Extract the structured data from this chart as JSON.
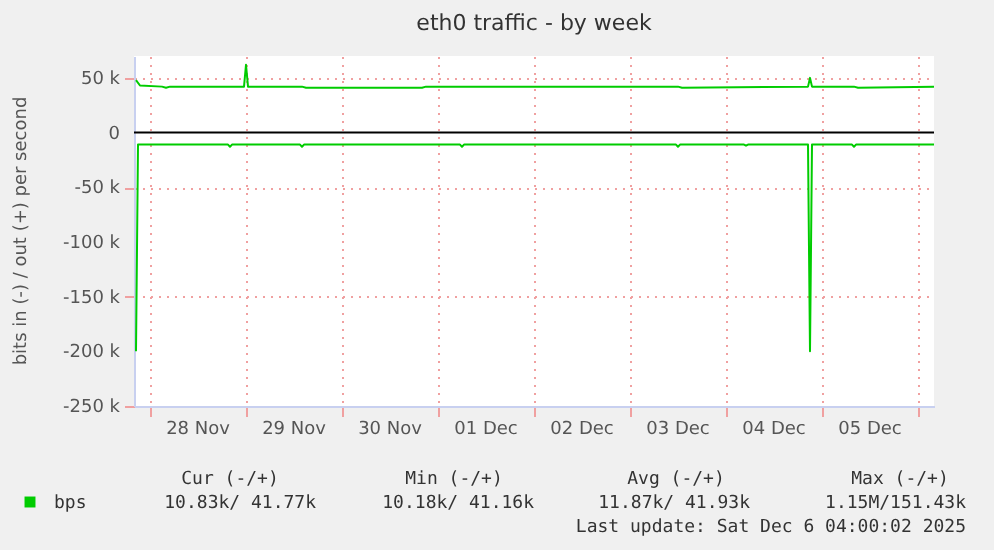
{
  "chart_data": {
    "type": "line",
    "title": "eth0 traffic - by week",
    "ylabel": "bits in (-) / out (+) per second",
    "xlim": [
      "2025-11-27T20:00",
      "2025-12-06T04:00"
    ],
    "xticks": [
      {
        "value": "2025-11-28T00:00",
        "label": null
      },
      {
        "value": "2025-11-28T12:00",
        "label": "28 Nov"
      },
      {
        "value": "2025-11-29T00:00",
        "label": null
      },
      {
        "value": "2025-11-29T12:00",
        "label": "29 Nov"
      },
      {
        "value": "2025-11-30T00:00",
        "label": null
      },
      {
        "value": "2025-11-30T12:00",
        "label": "30 Nov"
      },
      {
        "value": "2025-12-01T00:00",
        "label": null
      },
      {
        "value": "2025-12-01T12:00",
        "label": "01 Dec"
      },
      {
        "value": "2025-12-02T00:00",
        "label": null
      },
      {
        "value": "2025-12-02T12:00",
        "label": "02 Dec"
      },
      {
        "value": "2025-12-03T00:00",
        "label": null
      },
      {
        "value": "2025-12-03T12:00",
        "label": "03 Dec"
      },
      {
        "value": "2025-12-04T00:00",
        "label": null
      },
      {
        "value": "2025-12-04T12:00",
        "label": "04 Dec"
      },
      {
        "value": "2025-12-05T00:00",
        "label": null
      },
      {
        "value": "2025-12-05T12:00",
        "label": "05 Dec"
      },
      {
        "value": "2025-12-06T00:00",
        "label": null
      }
    ],
    "ylim": [
      -250000,
      70000
    ],
    "yticks": [
      {
        "value": 50000,
        "label": "50 k"
      },
      0,
      {
        "value": -50000,
        "label": "-50 k"
      },
      {
        "value": -100000,
        "label": "-100 k"
      },
      {
        "value": -150000,
        "label": "-150 k"
      },
      {
        "value": -200000,
        "label": "-200 k"
      },
      {
        "value": -250000,
        "label": "-250 k"
      }
    ],
    "grid": true,
    "legend": "bottom left",
    "line_style": "solid",
    "ref_lines": [
      {
        "axis": "y",
        "value": 0,
        "label": null,
        "color": "#000000"
      }
    ],
    "series": [
      {
        "name": "bps",
        "color": "#00cc00",
        "x": [
          "2025-11-27T20:30",
          "2025-11-27T21:30",
          "2025-11-28T03:00",
          "2025-11-28T04:00",
          "2025-11-28T05:00",
          "2025-11-28T23:30",
          "2025-11-29T00:00",
          "2025-11-29T00:30",
          "2025-11-29T14:00",
          "2025-11-29T15:00",
          "2025-11-30T20:00",
          "2025-11-30T21:00",
          "2025-12-01T00:00",
          "2025-12-01T06:00",
          "2025-12-03T12:00",
          "2025-12-03T13:00",
          "2025-12-04T20:30",
          "2025-12-04T21:00",
          "2025-12-04T21:30",
          "2025-12-05T08:00",
          "2025-12-05T09:00",
          "2025-12-06T04:00"
        ],
        "values": [
          48000,
          43000,
          42000,
          41000,
          42000,
          42000,
          62000,
          42000,
          42000,
          41000,
          41000,
          42000,
          42000,
          42000,
          42000,
          41000,
          42000,
          50000,
          42000,
          42000,
          41000,
          42000
        ]
      },
      {
        "color": "#00cc00",
        "x": [
          "2025-11-27T20:30",
          "2025-11-27T21:00",
          "2025-11-28T19:30",
          "2025-11-28T20:00",
          "2025-11-28T20:30",
          "2025-11-29T13:30",
          "2025-11-29T14:00",
          "2025-11-29T14:30",
          "2025-12-01T05:30",
          "2025-12-01T06:00",
          "2025-12-01T06:30",
          "2025-12-03T11:30",
          "2025-12-03T12:00",
          "2025-12-03T12:30",
          "2025-12-04T04:30",
          "2025-12-04T05:00",
          "2025-12-04T05:30",
          "2025-12-04T20:30",
          "2025-12-04T21:00",
          "2025-12-04T21:30",
          "2025-12-05T07:30",
          "2025-12-05T08:00",
          "2025-12-05T08:30",
          "2025-12-06T04:00"
        ],
        "values": [
          -200000,
          -11000,
          -11000,
          -13000,
          -11000,
          -11000,
          -13000,
          -11000,
          -11000,
          -13000,
          -11000,
          -11000,
          -13000,
          -11000,
          -11000,
          -12000,
          -11000,
          -11000,
          -200000,
          -11000,
          -11000,
          -13000,
          -11000,
          -11000
        ]
      }
    ],
    "annotations": [
      "Cur (-/+)",
      "Min (-/+)",
      "Avg (-/+)",
      "Max (-/+)",
      "10.83k/ 41.77k",
      "10.18k/ 41.16k",
      "11.87k/ 41.93k",
      "1.15M/151.43k",
      "Last update: Sat Dec  6 04:00:02 2025"
    ]
  }
}
